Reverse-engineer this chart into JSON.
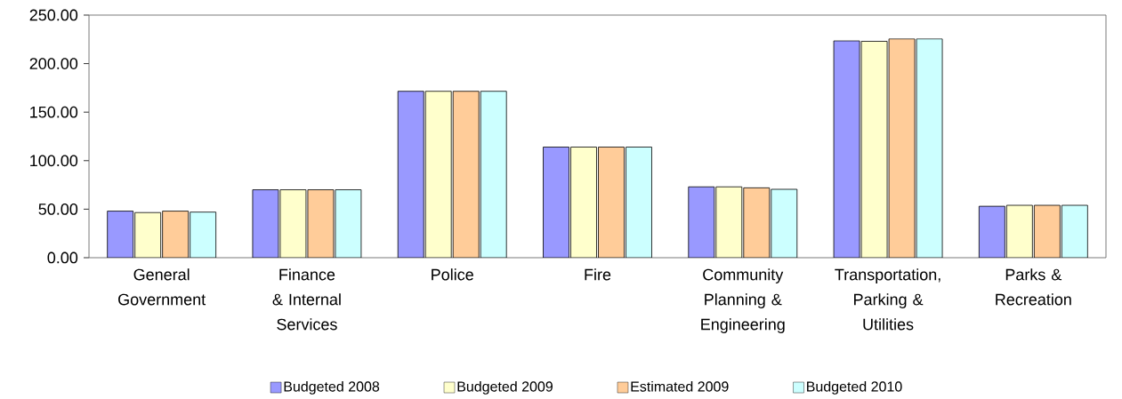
{
  "chart_data": {
    "type": "bar",
    "categories": [
      "General Government",
      "Finance & Internal Services",
      "Police",
      "Fire",
      "Community Planning & Engineering",
      "Transportation, Parking & Utilities",
      "Parks & Recreation"
    ],
    "series": [
      {
        "name": "Budgeted 2008",
        "color": "#9999ff",
        "values": [
          48,
          70,
          171.5,
          114,
          73,
          223.5,
          53
        ]
      },
      {
        "name": "Budgeted 2009",
        "color": "#ffffcc",
        "values": [
          46.5,
          70,
          171.5,
          114,
          73,
          223,
          54
        ]
      },
      {
        "name": "Estimated 2009",
        "color": "#ffcc99",
        "values": [
          48,
          70,
          171.5,
          114,
          72,
          225.5,
          54
        ]
      },
      {
        "name": "Budgeted 2010",
        "color": "#ccffff",
        "values": [
          47,
          70,
          171.5,
          114,
          70.5,
          225.5,
          54
        ]
      }
    ],
    "ylim": [
      0,
      250
    ],
    "yticks": [
      {
        "value": 0,
        "label": "0.00"
      },
      {
        "value": 50,
        "label": "50.00"
      },
      {
        "value": 100,
        "label": "100.00"
      },
      {
        "value": 150,
        "label": "150.00"
      },
      {
        "value": 200,
        "label": "200.00"
      },
      {
        "value": 250,
        "label": "250.00"
      }
    ],
    "legend": "bottom"
  }
}
